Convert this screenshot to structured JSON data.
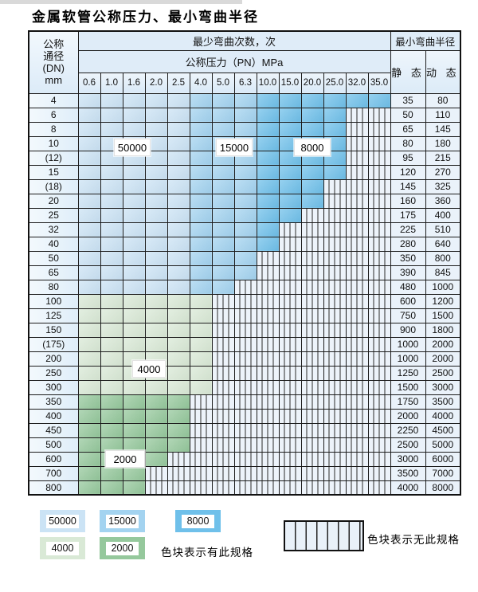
{
  "title": "金属软管公称压力、最小弯曲半径",
  "colors": {
    "light_blue": "#cbe3f5",
    "mid_blue": "#a3d3f0",
    "dark_blue": "#6fc0ea",
    "light_green": "#d9e9d6",
    "mid_green": "#95c89c",
    "hatch_bg": "#edf3fa",
    "header_bg": "#dfecf8",
    "grid": "#1c1c1c"
  },
  "table": {
    "corner_line1": "公称",
    "corner_line2": "通径",
    "corner_line3": "(DN)",
    "corner_line4": "mm",
    "bend_count_header": "最少弯曲次数，次",
    "pressure_header": "公称压力（PN）MPa",
    "radius_header": "最小弯曲半径",
    "static_header": "静 态",
    "dynamic_header": "动 态",
    "pn_columns": [
      "0.6",
      "1.0",
      "1.6",
      "2.0",
      "2.5",
      "4.0",
      "5.0",
      "6.3",
      "10.0",
      "15.0",
      "20.0",
      "25.0",
      "32.0",
      "35.0"
    ],
    "rows": [
      {
        "dn": "4",
        "colored": 14,
        "max_pn": "35.0",
        "palette": "blue",
        "static": "35",
        "dynamic": "80"
      },
      {
        "dn": "6",
        "colored": 12,
        "max_pn": "25.0",
        "palette": "blue",
        "static": "50",
        "dynamic": "110"
      },
      {
        "dn": "8",
        "colored": 12,
        "max_pn": "25.0",
        "palette": "blue",
        "static": "65",
        "dynamic": "145"
      },
      {
        "dn": "10",
        "colored": 12,
        "max_pn": "25.0",
        "palette": "blue",
        "static": "80",
        "dynamic": "180"
      },
      {
        "dn": "(12)",
        "colored": 12,
        "max_pn": "25.0",
        "palette": "blue",
        "static": "95",
        "dynamic": "215"
      },
      {
        "dn": "15",
        "colored": 12,
        "max_pn": "25.0",
        "palette": "blue",
        "static": "120",
        "dynamic": "270"
      },
      {
        "dn": "(18)",
        "colored": 11,
        "max_pn": "20.0",
        "palette": "blue",
        "static": "145",
        "dynamic": "325"
      },
      {
        "dn": "20",
        "colored": 11,
        "max_pn": "20.0",
        "palette": "blue",
        "static": "160",
        "dynamic": "360"
      },
      {
        "dn": "25",
        "colored": 10,
        "max_pn": "15.0",
        "palette": "blue",
        "static": "175",
        "dynamic": "400"
      },
      {
        "dn": "32",
        "colored": 9,
        "max_pn": "10.0",
        "palette": "blue",
        "static": "225",
        "dynamic": "510"
      },
      {
        "dn": "40",
        "colored": 9,
        "max_pn": "10.0",
        "palette": "blue",
        "static": "280",
        "dynamic": "640"
      },
      {
        "dn": "50",
        "colored": 8,
        "max_pn": "6.3",
        "palette": "blue",
        "static": "350",
        "dynamic": "800"
      },
      {
        "dn": "65",
        "colored": 8,
        "max_pn": "6.3",
        "palette": "blue",
        "static": "390",
        "dynamic": "845"
      },
      {
        "dn": "80",
        "colored": 7,
        "max_pn": "5.0",
        "palette": "blue",
        "static": "480",
        "dynamic": "1000"
      },
      {
        "dn": "100",
        "colored": 6,
        "max_pn": "4.0",
        "palette": "green4000",
        "static": "600",
        "dynamic": "1200"
      },
      {
        "dn": "125",
        "colored": 6,
        "max_pn": "4.0",
        "palette": "green4000",
        "static": "750",
        "dynamic": "1500"
      },
      {
        "dn": "150",
        "colored": 6,
        "max_pn": "4.0",
        "palette": "green4000",
        "static": "900",
        "dynamic": "1800"
      },
      {
        "dn": "(175)",
        "colored": 6,
        "max_pn": "4.0",
        "palette": "green4000",
        "static": "1000",
        "dynamic": "2000"
      },
      {
        "dn": "200",
        "colored": 6,
        "max_pn": "4.0",
        "palette": "green4000",
        "static": "1000",
        "dynamic": "2000"
      },
      {
        "dn": "250",
        "colored": 6,
        "max_pn": "4.0",
        "palette": "green4000",
        "static": "1250",
        "dynamic": "2500"
      },
      {
        "dn": "300",
        "colored": 6,
        "max_pn": "4.0",
        "palette": "green4000",
        "static": "1500",
        "dynamic": "3000"
      },
      {
        "dn": "350",
        "colored": 5,
        "max_pn": "2.5",
        "palette": "green2000",
        "static": "1750",
        "dynamic": "3500"
      },
      {
        "dn": "400",
        "colored": 5,
        "max_pn": "2.5",
        "palette": "green2000",
        "static": "2000",
        "dynamic": "4000"
      },
      {
        "dn": "450",
        "colored": 5,
        "max_pn": "2.5",
        "palette": "green2000",
        "static": "2250",
        "dynamic": "4500"
      },
      {
        "dn": "500",
        "colored": 5,
        "max_pn": "2.5",
        "palette": "green2000",
        "static": "2500",
        "dynamic": "5000"
      },
      {
        "dn": "600",
        "colored": 4,
        "max_pn": "2.0",
        "palette": "green2000",
        "static": "3000",
        "dynamic": "6000"
      },
      {
        "dn": "700",
        "colored": 3,
        "max_pn": "1.6",
        "palette": "green2000",
        "static": "3500",
        "dynamic": "7000"
      },
      {
        "dn": "800",
        "colored": 3,
        "max_pn": "1.6",
        "palette": "green2000",
        "static": "4000",
        "dynamic": "8000"
      }
    ]
  },
  "zone_labels": [
    "50000",
    "15000",
    "8000",
    "4000",
    "2000"
  ],
  "legend": {
    "items": [
      {
        "value": "50000",
        "colorKey": "light_blue"
      },
      {
        "value": "15000",
        "colorKey": "mid_blue"
      },
      {
        "value": "8000",
        "colorKey": "dark_blue"
      },
      {
        "value": "4000",
        "colorKey": "light_green"
      },
      {
        "value": "2000",
        "colorKey": "mid_green"
      }
    ],
    "has_spec_label": "色块表示有此规格",
    "no_spec_label": "色块表示无此规格"
  }
}
